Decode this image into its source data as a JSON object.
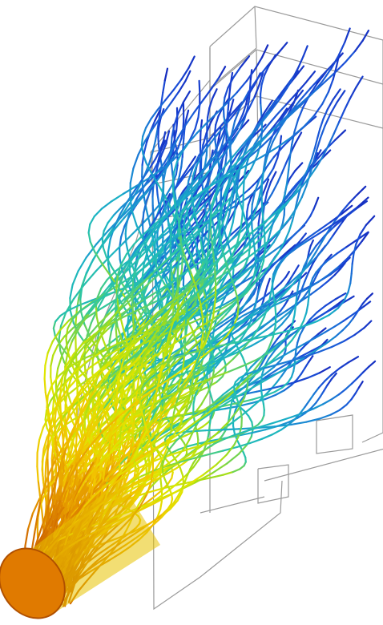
{
  "visualization": {
    "kind": "cfd-streamline-visualization",
    "background": "#ffffff",
    "wireframe_color": "#9a9a9a",
    "colormap": [
      "#c85a00",
      "#e08a00",
      "#f2c400",
      "#dfe600",
      "#9fdd1a",
      "#2fc7a0",
      "#1ab3c4",
      "#1a86d4",
      "#1a4fd8",
      "#1422b8"
    ],
    "streamline_count": 140
  }
}
